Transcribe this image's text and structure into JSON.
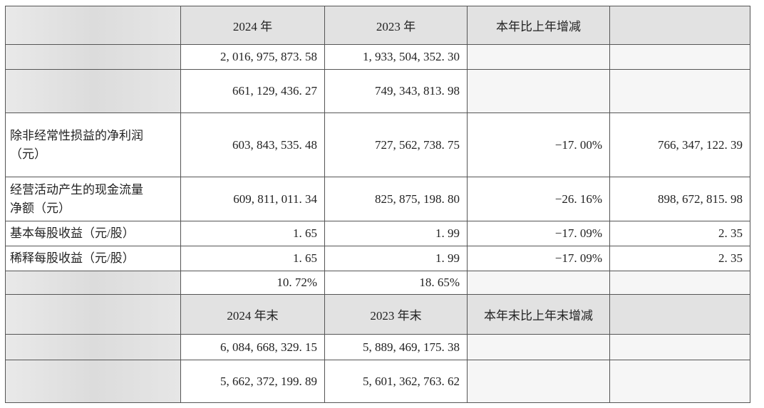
{
  "table": {
    "header_rows": [
      [
        null,
        "2024 年",
        "2023 年",
        "本年比上年增减",
        null
      ],
      [
        null,
        "2024 年末",
        "2023 年末",
        "本年末比上年末增减",
        null
      ]
    ],
    "rows": [
      [
        null,
        "2, 016, 975, 873. 58",
        "1, 933, 504, 352. 30",
        null,
        null
      ],
      [
        null,
        "661, 129, 436. 27",
        "749, 343, 813. 98",
        null,
        null
      ],
      [
        [
          "除非经常性损益的净利润",
          "（元）"
        ],
        "603, 843, 535. 48",
        "727, 562, 738. 75",
        "−17. 00%",
        "766, 347, 122. 39"
      ],
      [
        [
          "经营活动产生的现金流量",
          "净额（元）"
        ],
        "609, 811, 011. 34",
        "825, 875, 198. 80",
        "−26. 16%",
        "898, 672, 815. 98"
      ],
      [
        [
          "基本每股收益（元/股）"
        ],
        "1. 65",
        "1. 99",
        "−17. 09%",
        "2. 35"
      ],
      [
        [
          "稀释每股收益（元/股）"
        ],
        "1. 65",
        "1. 99",
        "−17. 09%",
        "2. 35"
      ],
      [
        null,
        "10. 72%",
        "18. 65%",
        null,
        null
      ],
      [
        null,
        "6, 084, 668, 329. 15",
        "5, 889, 469, 175. 38",
        null,
        null
      ],
      [
        null,
        "5, 662, 372, 199. 89",
        "5, 601, 362, 763. 62",
        null,
        null
      ]
    ]
  }
}
